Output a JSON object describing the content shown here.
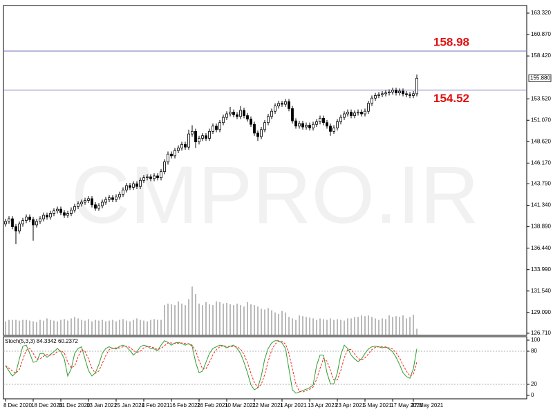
{
  "chart_data": [
    {
      "type": "candlestick",
      "watermark": "CMPRO.IR",
      "categories": [
        "8 Dec 2020",
        null,
        null,
        null,
        null,
        null,
        null,
        null,
        "18 Dec 2020",
        null,
        null,
        null,
        null,
        null,
        null,
        null,
        "31 Dec 2020",
        null,
        null,
        null,
        null,
        null,
        null,
        null,
        "13 Jan 2021",
        null,
        null,
        null,
        null,
        null,
        null,
        null,
        "25 Jan 2021",
        null,
        null,
        null,
        null,
        null,
        null,
        null,
        "4 Feb 2021",
        null,
        null,
        null,
        null,
        null,
        null,
        null,
        "16 Feb 2021",
        null,
        null,
        null,
        null,
        null,
        null,
        null,
        "26 Feb 2021",
        null,
        null,
        null,
        null,
        null,
        null,
        null,
        "10 Mar 2021",
        null,
        null,
        null,
        null,
        null,
        null,
        null,
        "22 Mar 2021",
        null,
        null,
        null,
        null,
        null,
        null,
        null,
        "1 Apr 2021",
        null,
        null,
        null,
        null,
        null,
        null,
        null,
        "13 Apr 2021",
        null,
        null,
        null,
        null,
        null,
        null,
        null,
        "23 Apr 2021",
        null,
        null,
        null,
        null,
        null,
        null,
        null,
        "5 May 2021",
        null,
        null,
        null,
        null,
        null,
        null,
        null,
        "17 May 2021",
        null,
        null,
        null,
        null,
        null,
        "27 May 2021",
        null
      ],
      "open": [
        139.2,
        139.5,
        139.8,
        138.9,
        138.4,
        139.2,
        139.6,
        140.0,
        139.7,
        139.1,
        139.5,
        139.8,
        140.2,
        140.0,
        140.4,
        140.7,
        140.9,
        140.5,
        140.2,
        140.4,
        140.8,
        141.2,
        141.5,
        141.7,
        141.9,
        142.1,
        141.4,
        141.0,
        141.3,
        141.7,
        142.0,
        142.2,
        142.0,
        142.3,
        142.6,
        143.1,
        143.6,
        143.4,
        143.8,
        143.5,
        144.2,
        144.5,
        144.6,
        144.4,
        144.7,
        144.5,
        145.2,
        146.3,
        147.2,
        147.0,
        147.6,
        147.9,
        148.3,
        148.0,
        149.5,
        149.8,
        148.6,
        149.0,
        149.3,
        149.0,
        149.8,
        150.4,
        150.0,
        150.8,
        151.4,
        151.8,
        152.0,
        151.7,
        151.5,
        152.2,
        151.6,
        151.2,
        150.6,
        149.6,
        149.2,
        150.0,
        150.8,
        151.5,
        152.1,
        152.7,
        153.0,
        152.9,
        153.2,
        152.4,
        151.0,
        150.4,
        150.7,
        150.3,
        150.5,
        150.2,
        150.6,
        150.9,
        151.3,
        150.8,
        150.4,
        149.8,
        150.2,
        150.9,
        151.4,
        151.8,
        152.0,
        151.6,
        151.9,
        152.0,
        151.8,
        152.1,
        153.0,
        153.6,
        153.9,
        154.0,
        154.1,
        154.2,
        154.3,
        154.5,
        154.2,
        154.4,
        154.1,
        154.0,
        153.9,
        154.1
      ],
      "high": [
        139.8,
        140.1,
        140.1,
        139.2,
        139.5,
        139.9,
        140.3,
        140.3,
        140.0,
        139.8,
        140.1,
        140.5,
        140.5,
        140.7,
        141.0,
        141.2,
        141.2,
        140.8,
        140.7,
        141.1,
        141.5,
        141.8,
        142.0,
        142.2,
        142.4,
        142.4,
        141.7,
        141.6,
        142.0,
        142.3,
        142.5,
        142.5,
        142.6,
        142.9,
        143.4,
        143.9,
        143.9,
        144.1,
        144.1,
        144.5,
        144.8,
        144.9,
        144.9,
        145.0,
        145.0,
        145.5,
        146.6,
        147.5,
        147.5,
        147.9,
        148.2,
        148.6,
        148.6,
        150.0,
        150.5,
        150.1,
        149.3,
        149.6,
        149.6,
        150.1,
        150.7,
        150.7,
        151.1,
        151.7,
        152.1,
        152.6,
        152.3,
        152.0,
        152.7,
        152.5,
        151.9,
        151.5,
        150.9,
        149.9,
        150.3,
        151.1,
        151.8,
        152.4,
        153.0,
        153.3,
        153.3,
        153.5,
        153.5,
        152.7,
        151.3,
        151.0,
        151.0,
        150.8,
        150.8,
        150.9,
        151.2,
        151.6,
        151.6,
        151.1,
        150.7,
        150.5,
        151.2,
        151.7,
        152.1,
        152.3,
        152.3,
        152.2,
        152.3,
        152.3,
        152.4,
        153.3,
        153.9,
        154.2,
        154.3,
        154.4,
        154.5,
        154.6,
        154.8,
        154.8,
        154.7,
        154.7,
        154.4,
        154.3,
        154.4,
        156.3
      ],
      "low": [
        138.9,
        139.2,
        138.6,
        136.9,
        138.1,
        138.9,
        139.3,
        139.4,
        137.3,
        138.8,
        139.2,
        139.5,
        139.7,
        139.7,
        140.1,
        140.4,
        140.2,
        139.9,
        139.9,
        140.1,
        140.5,
        140.9,
        141.2,
        141.4,
        141.6,
        141.1,
        140.7,
        140.7,
        141.0,
        141.4,
        141.7,
        141.7,
        141.7,
        142.0,
        142.3,
        142.8,
        143.1,
        143.1,
        143.2,
        143.2,
        143.9,
        144.2,
        144.1,
        144.1,
        144.2,
        144.2,
        144.9,
        146.0,
        146.7,
        146.7,
        147.3,
        147.6,
        147.7,
        147.7,
        149.2,
        147.9,
        148.3,
        148.7,
        148.7,
        148.7,
        149.5,
        149.7,
        149.7,
        150.5,
        151.1,
        151.5,
        151.4,
        151.2,
        151.2,
        151.3,
        150.9,
        150.3,
        149.3,
        148.7,
        148.9,
        149.7,
        150.5,
        151.2,
        151.8,
        152.4,
        152.6,
        152.6,
        152.1,
        150.7,
        150.1,
        150.1,
        150.0,
        150.0,
        149.9,
        149.9,
        150.3,
        150.6,
        150.5,
        150.1,
        149.3,
        149.5,
        149.9,
        150.6,
        151.1,
        151.5,
        151.3,
        151.3,
        151.6,
        151.5,
        151.5,
        151.8,
        152.7,
        153.3,
        153.6,
        153.7,
        153.8,
        153.9,
        154.0,
        153.9,
        153.9,
        153.8,
        153.7,
        153.6,
        153.6,
        153.8
      ],
      "close": [
        139.5,
        139.8,
        138.9,
        138.4,
        139.2,
        139.6,
        140.0,
        139.7,
        139.1,
        139.5,
        139.8,
        140.2,
        140.0,
        140.4,
        140.7,
        140.9,
        140.5,
        140.2,
        140.4,
        140.8,
        141.2,
        141.5,
        141.7,
        141.9,
        142.1,
        141.4,
        141.0,
        141.3,
        141.7,
        142.0,
        142.2,
        142.0,
        142.3,
        142.6,
        143.1,
        143.6,
        143.4,
        143.8,
        143.5,
        144.2,
        144.5,
        144.6,
        144.4,
        144.7,
        144.5,
        145.2,
        146.3,
        147.2,
        147.0,
        147.6,
        147.9,
        148.3,
        148.0,
        149.5,
        149.8,
        148.6,
        149.0,
        149.3,
        149.0,
        149.8,
        150.4,
        150.0,
        150.8,
        151.4,
        151.8,
        152.0,
        151.7,
        151.5,
        152.2,
        151.6,
        151.2,
        150.6,
        149.6,
        149.2,
        150.0,
        150.8,
        151.5,
        152.1,
        152.7,
        153.0,
        152.9,
        153.2,
        152.4,
        151.0,
        150.4,
        150.7,
        150.3,
        150.5,
        150.2,
        150.6,
        150.9,
        151.3,
        150.8,
        150.4,
        149.8,
        150.2,
        150.9,
        151.4,
        151.8,
        152.0,
        151.6,
        151.9,
        152.0,
        151.8,
        152.1,
        153.0,
        153.6,
        153.9,
        154.0,
        154.1,
        154.2,
        154.3,
        154.5,
        154.2,
        154.4,
        154.1,
        154.0,
        153.9,
        154.1,
        155.88
      ],
      "volume": [
        18,
        20,
        20,
        20,
        19,
        20,
        20,
        19,
        18,
        17,
        20,
        19,
        22,
        20,
        19,
        18,
        20,
        21,
        19,
        22,
        24,
        22,
        20,
        19,
        21,
        18,
        20,
        19,
        20,
        18,
        19,
        20,
        18,
        20,
        21,
        19,
        18,
        20,
        22,
        20,
        19,
        18,
        20,
        21,
        20,
        20,
        40,
        42,
        41,
        40,
        45,
        42,
        40,
        48,
        65,
        55,
        42,
        40,
        44,
        41,
        40,
        45,
        44,
        42,
        43,
        41,
        40,
        42,
        40,
        38,
        44,
        41,
        40,
        38,
        35,
        34,
        36,
        33,
        30,
        28,
        32,
        30,
        24,
        22,
        20,
        26,
        25,
        24,
        23,
        22,
        20,
        22,
        21,
        20,
        22,
        20,
        21,
        20,
        19,
        22,
        22,
        24,
        24,
        26,
        25,
        26,
        24,
        22,
        20,
        22,
        21,
        26,
        24,
        25,
        24,
        26,
        22,
        24,
        27,
        8
      ],
      "volume_lim": [
        0,
        70
      ],
      "volume_color": "#8c8c8c",
      "up_color": "#ffffff",
      "down_color": "#000000",
      "ylim": [
        126.47,
        164.19
      ],
      "yticks": [
        {
          "value": 163.32,
          "label": "163.320"
        },
        {
          "value": 160.87,
          "label": "160.870"
        },
        {
          "value": 158.42,
          "label": "158.420"
        },
        {
          "value": 153.52,
          "label": "153.520"
        },
        {
          "value": 151.07,
          "label": "151.070"
        },
        {
          "value": 148.62,
          "label": "148.620"
        },
        {
          "value": 146.17,
          "label": "146.170"
        },
        {
          "value": 143.79,
          "label": "143.790"
        },
        {
          "value": 141.34,
          "label": "141.340"
        },
        {
          "value": 138.89,
          "label": "138.890"
        },
        {
          "value": 136.44,
          "label": "136.440"
        },
        {
          "value": 133.99,
          "label": "133.990"
        },
        {
          "value": 131.54,
          "label": "131.540"
        },
        {
          "value": 129.09,
          "label": "129.090"
        },
        {
          "value": 126.71,
          "label": "126.710"
        }
      ],
      "current_price": {
        "value": 155.88,
        "label": "155.880"
      },
      "hlines": [
        {
          "value": 158.98,
          "label": "158.98"
        },
        {
          "value": 154.52,
          "label": "154.52"
        }
      ],
      "hline_color": "#6f6fb5",
      "hline_label_color": "#e01010"
    },
    {
      "type": "stochastic",
      "label": "Stoch(5,3,3) 84.3342 60.2372",
      "ylim": [
        -6.25,
        106.25
      ],
      "yticks": [
        100,
        80,
        20,
        0
      ],
      "levels": [
        80,
        20
      ],
      "series": [
        {
          "color": "#2e9e2e",
          "values": [
            54,
            44,
            35,
            41,
            66,
            89,
            91,
            76,
            60,
            61,
            76,
            76,
            69,
            74,
            79,
            85,
            79,
            66,
            35,
            48,
            76,
            85,
            88,
            66,
            45,
            35,
            41,
            56,
            76,
            85,
            88,
            85,
            84,
            89,
            91,
            88,
            81,
            73,
            79,
            88,
            91,
            89,
            85,
            84,
            81,
            91,
            99,
            96,
            91,
            95,
            96,
            94,
            91,
            94,
            89,
            60,
            41,
            44,
            60,
            76,
            85,
            88,
            91,
            90,
            86,
            89,
            91,
            85,
            76,
            60,
            41,
            19,
            10,
            14,
            35,
            66,
            85,
            95,
            99,
            99,
            95,
            85,
            48,
            10,
            4,
            6,
            9,
            11,
            14,
            19,
            54,
            73,
            73,
            41,
            21,
            21,
            41,
            73,
            91,
            85,
            73,
            66,
            61,
            66,
            76,
            84,
            88,
            89,
            88,
            86,
            88,
            84,
            79,
            69,
            56,
            41,
            34,
            31,
            48,
            84.3342
          ]
        },
        {
          "color": "#ff2020",
          "dashed": true,
          "values": [
            54,
            49,
            44,
            40,
            47,
            65,
            82,
            85,
            76,
            66,
            66,
            71,
            74,
            73,
            74,
            79,
            81,
            77,
            60,
            50,
            53,
            70,
            83,
            80,
            66,
            49,
            40,
            44,
            58,
            72,
            83,
            86,
            86,
            86,
            88,
            89,
            87,
            81,
            78,
            80,
            86,
            89,
            88,
            86,
            83,
            85,
            90,
            95,
            95,
            94,
            94,
            95,
            94,
            93,
            91,
            81,
            63,
            48,
            48,
            60,
            74,
            83,
            88,
            90,
            89,
            88,
            89,
            88,
            84,
            74,
            59,
            40,
            23,
            14,
            20,
            38,
            62,
            82,
            93,
            98,
            98,
            93,
            76,
            48,
            21,
            7,
            6,
            9,
            11,
            15,
            29,
            49,
            67,
            62,
            45,
            28,
            28,
            45,
            68,
            83,
            83,
            75,
            67,
            64,
            68,
            75,
            83,
            87,
            88,
            88,
            87,
            86,
            84,
            77,
            68,
            55,
            44,
            35,
            38,
            60.2372
          ]
        }
      ]
    }
  ]
}
